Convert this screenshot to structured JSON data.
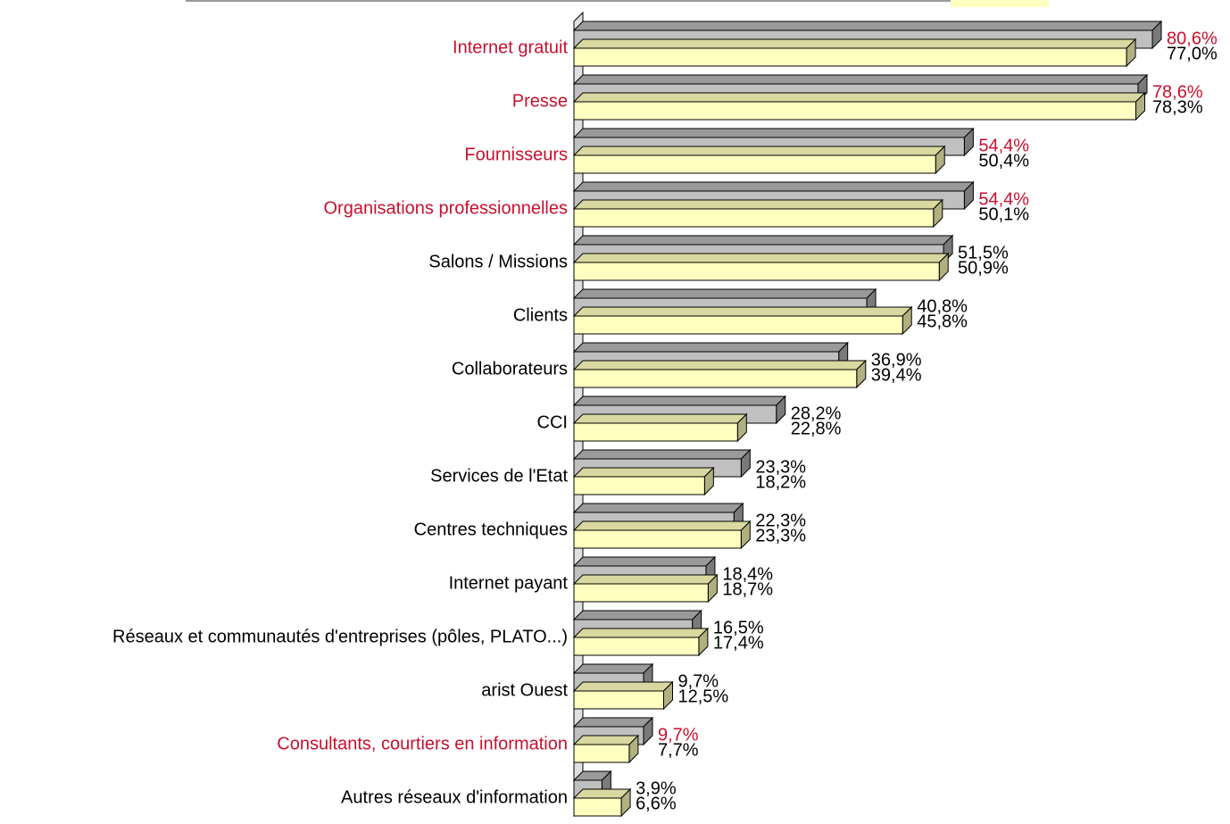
{
  "chart_data": {
    "type": "bar3d-horizontal",
    "categories": [
      "Internet gratuit",
      "Presse",
      "Fournisseurs",
      "Organisations professionnelles",
      "Salons / Missions",
      "Clients",
      "Collaborateurs",
      "CCI",
      "Services de l'Etat",
      "Centres techniques",
      "Internet payant",
      "Réseaux et communautés d'entreprises (pôles, PLATO...)",
      "arist Ouest",
      "Consultants, courtiers en information",
      "Autres réseaux d'information"
    ],
    "category_colors": [
      "#c8102e",
      "#c8102e",
      "#c8102e",
      "#c8102e",
      "#000000",
      "#000000",
      "#000000",
      "#000000",
      "#000000",
      "#000000",
      "#000000",
      "#000000",
      "#000000",
      "#c8102e",
      "#000000"
    ],
    "series": [
      {
        "color": "#c0c0c0",
        "top_color": "#9a9a9a",
        "side_color": "#7a7a7a",
        "values": [
          80.6,
          78.6,
          54.4,
          54.4,
          51.5,
          40.8,
          36.9,
          28.2,
          23.3,
          22.3,
          18.4,
          16.5,
          9.7,
          9.7,
          3.9
        ],
        "value_labels": [
          "80,6%",
          "78,6%",
          "54,4%",
          "54,4%",
          "51,5%",
          "40,8%",
          "36,9%",
          "28,2%",
          "23,3%",
          "22,3%",
          "18,4%",
          "16,5%",
          "9,7%",
          "9,7%",
          "3,9%"
        ],
        "value_label_colors": [
          "#c8102e",
          "#c8102e",
          "#c8102e",
          "#c8102e",
          "#000000",
          "#000000",
          "#000000",
          "#000000",
          "#000000",
          "#000000",
          "#000000",
          "#000000",
          "#000000",
          "#c8102e",
          "#000000"
        ]
      },
      {
        "color": "#ffffc0",
        "top_color": "#d8d8a0",
        "side_color": "#b0b080",
        "values": [
          77.0,
          78.3,
          50.4,
          50.1,
          50.9,
          45.8,
          39.4,
          22.8,
          18.2,
          23.3,
          18.7,
          17.4,
          12.5,
          7.7,
          6.6
        ],
        "value_labels": [
          "77,0%",
          "78,3%",
          "50,4%",
          "50,1%",
          "50,9%",
          "45,8%",
          "39,4%",
          "22,8%",
          "18,2%",
          "23,3%",
          "18,7%",
          "17,4%",
          "12,5%",
          "7,7%",
          "6,6%"
        ],
        "value_label_colors": [
          "#000000",
          "#000000",
          "#000000",
          "#000000",
          "#000000",
          "#000000",
          "#000000",
          "#000000",
          "#000000",
          "#000000",
          "#000000",
          "#000000",
          "#000000",
          "#000000",
          "#000000"
        ]
      }
    ]
  }
}
